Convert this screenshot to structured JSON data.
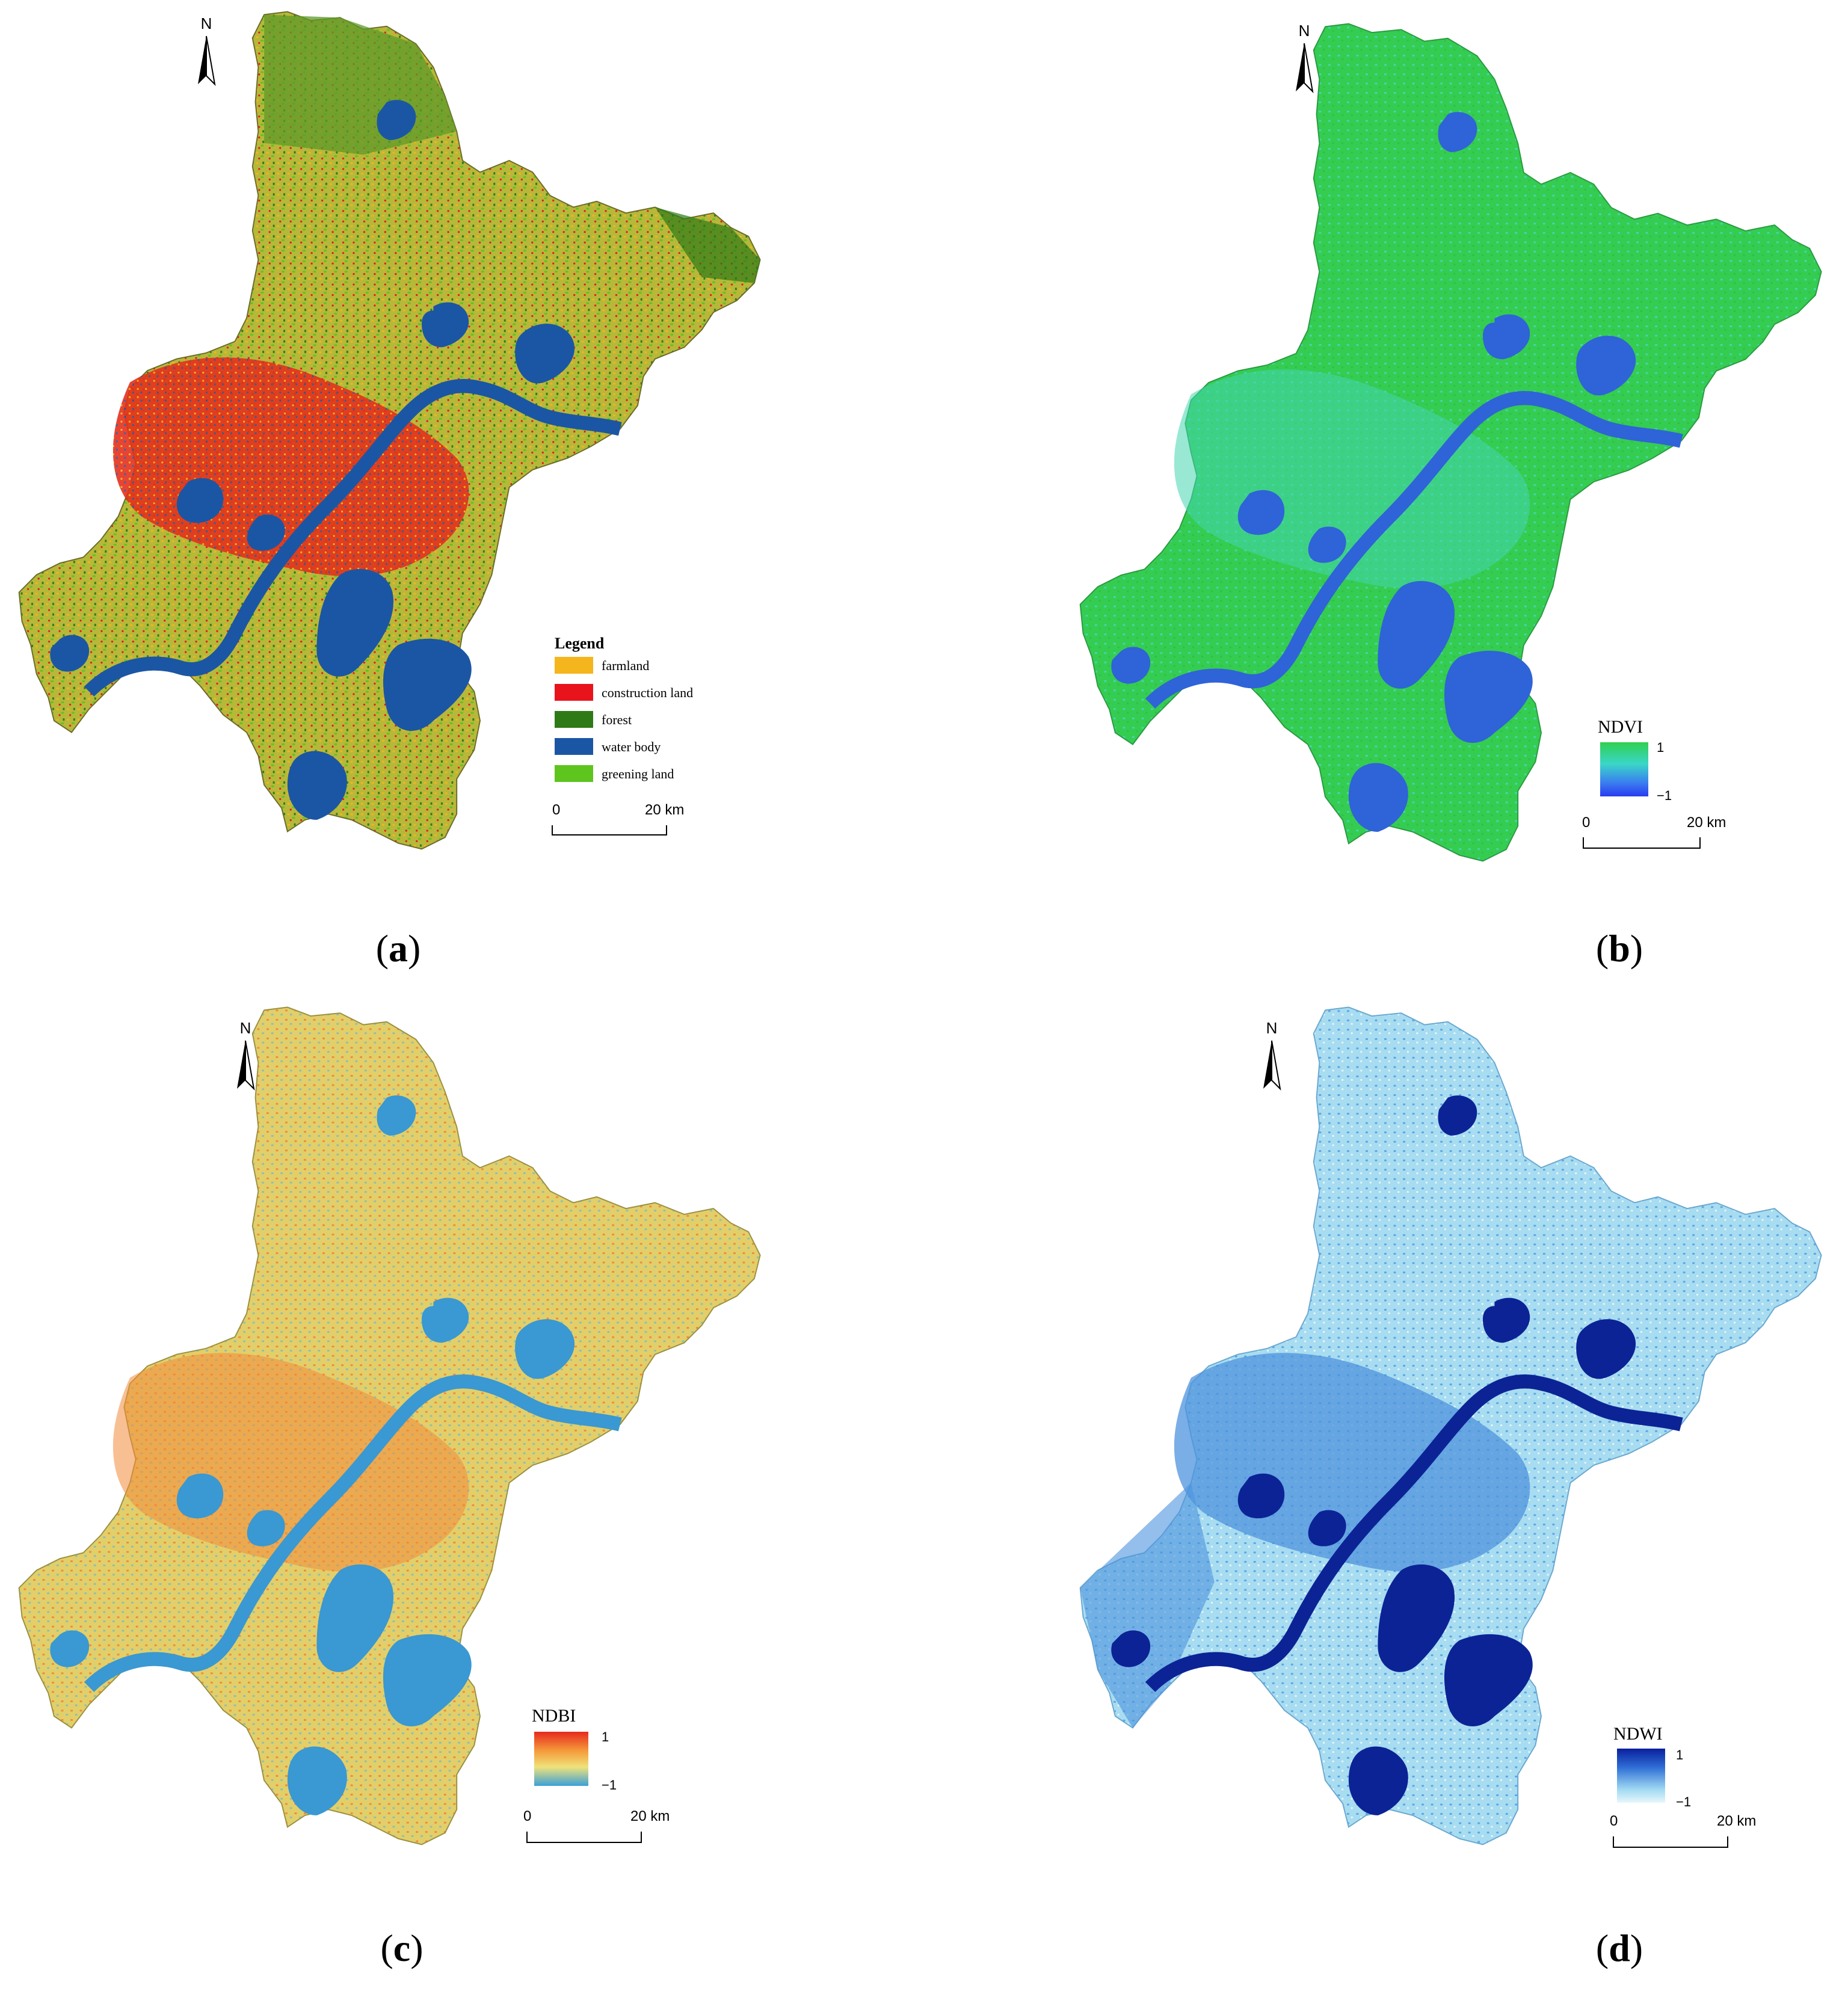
{
  "figure": {
    "panels": [
      {
        "id": "a",
        "label": "a",
        "north_label": "N",
        "legend_title": "Legend",
        "legend_items": [
          {
            "label": "farmland",
            "color": "#f5b51c"
          },
          {
            "label": "construction land",
            "color": "#e8131b"
          },
          {
            "label": "forest",
            "color": "#2e7a17"
          },
          {
            "label": "water body",
            "color": "#1b56a4"
          },
          {
            "label": "greening land",
            "color": "#5ec41e"
          }
        ],
        "scale_start": "0",
        "scale_end": "20 km"
      },
      {
        "id": "b",
        "label": "b",
        "north_label": "N",
        "index_name": "NDVI",
        "range_max": "1",
        "range_min": "−1",
        "ramp_colors": [
          "#2fd050",
          "#3ad6c8",
          "#3a7df0",
          "#2a3af0"
        ],
        "scale_start": "0",
        "scale_end": "20 km"
      },
      {
        "id": "c",
        "label": "c",
        "north_label": "N",
        "index_name": "NDBI",
        "range_max": "1",
        "range_min": "−1",
        "ramp_colors": [
          "#e62a1e",
          "#f59a3a",
          "#f0e27a",
          "#3aa0d8"
        ],
        "scale_start": "0",
        "scale_end": "20 km"
      },
      {
        "id": "d",
        "label": "d",
        "north_label": "N",
        "index_name": "NDWI",
        "range_max": "1",
        "range_min": "−1",
        "ramp_colors": [
          "#0a1f9e",
          "#2f6fd6",
          "#9fd8f2",
          "#e8f7fc"
        ],
        "scale_start": "0",
        "scale_end": "20 km"
      }
    ],
    "map_colors": {
      "a_base": "#b7b83a",
      "a_north": "#5e9a2a",
      "a_urban": "#e3301c",
      "a_water": "#1b56a4",
      "b_base": "#35cc52",
      "b_water": "#2f63d8",
      "b_light": "#44d6b0",
      "c_base": "#e2cf6a",
      "c_urban": "#f28a3a",
      "c_water": "#3a98d2",
      "d_base": "#a8dcf0",
      "d_mid": "#4d93dd",
      "d_water": "#0c2396"
    }
  }
}
